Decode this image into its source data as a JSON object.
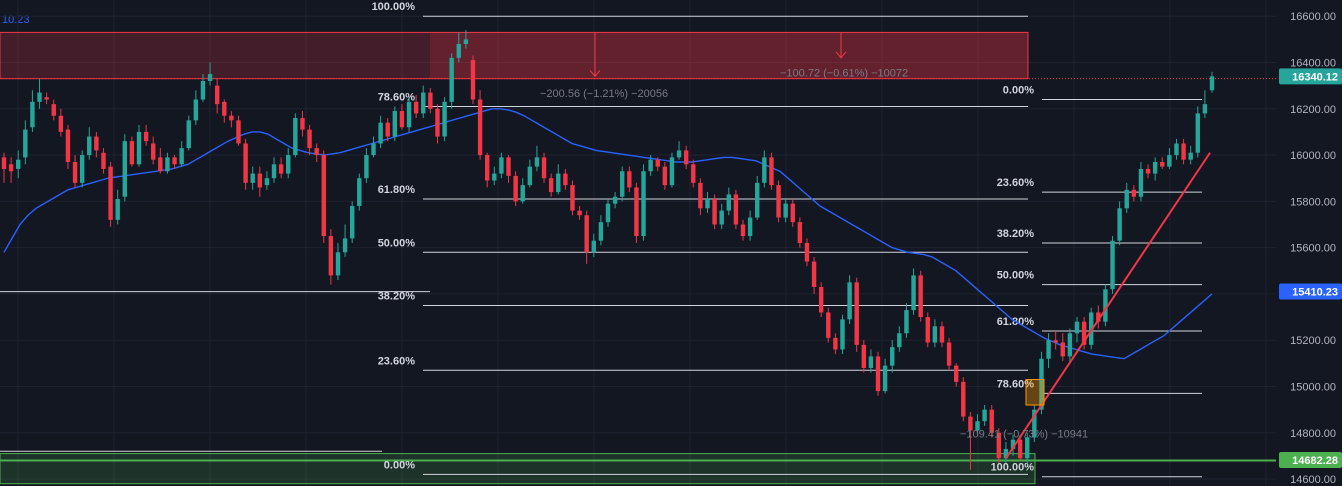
{
  "header": {
    "ma_value": "10.23"
  },
  "chart_data": {
    "type": "candlestick",
    "title": "",
    "y_axis": {
      "ticks": [
        16600,
        16400,
        16200,
        16000,
        15800,
        15600,
        15400,
        15200,
        15000,
        14800,
        14600
      ],
      "tick_labels": [
        "16600.00",
        "16400.00",
        "16200.00",
        "16000.00",
        "15800.00",
        "15600.00",
        "15400.00",
        "15200.00",
        "15000.00",
        "14800.00",
        "14600.00"
      ],
      "range": [
        14570,
        16670
      ]
    },
    "price_tags": [
      {
        "name": "last",
        "value": 16340.12,
        "label": "16340.12",
        "color": "#26a69a"
      },
      {
        "name": "ma",
        "value": 15410.23,
        "label": "15410.23",
        "color": "#2962ff"
      },
      {
        "name": "support",
        "value": 14682.28,
        "label": "14682.28",
        "color": "#4caf50"
      }
    ],
    "candles": [
      [
        15990,
        15940,
        16010,
        15880
      ],
      [
        15960,
        15930,
        15990,
        15880
      ],
      [
        15940,
        15980,
        16020,
        15900
      ],
      [
        15990,
        16110,
        16150,
        15960
      ],
      [
        16120,
        16230,
        16280,
        16100
      ],
      [
        16230,
        16270,
        16330,
        16200
      ],
      [
        16250,
        16240,
        16270,
        16220
      ],
      [
        16220,
        16170,
        16240,
        16150
      ],
      [
        16170,
        16100,
        16200,
        16080
      ],
      [
        16110,
        15970,
        16130,
        15940
      ],
      [
        15970,
        15880,
        16000,
        15860
      ],
      [
        15880,
        16000,
        16020,
        15860
      ],
      [
        16000,
        16080,
        16120,
        15980
      ],
      [
        16080,
        16020,
        16100,
        15990
      ],
      [
        16010,
        15940,
        16030,
        15920
      ],
      [
        15950,
        15720,
        15970,
        15690
      ],
      [
        15720,
        15810,
        15850,
        15700
      ],
      [
        15820,
        16060,
        16090,
        15800
      ],
      [
        16060,
        15960,
        16080,
        15950
      ],
      [
        15960,
        16100,
        16130,
        15950
      ],
      [
        16100,
        16060,
        16130,
        16040
      ],
      [
        16050,
        15980,
        16080,
        15960
      ],
      [
        15990,
        15930,
        16030,
        15920
      ],
      [
        15930,
        15990,
        16010,
        15920
      ],
      [
        15990,
        15960,
        16000,
        15940
      ],
      [
        15960,
        16030,
        16060,
        15950
      ],
      [
        16030,
        16150,
        16170,
        16020
      ],
      [
        16150,
        16240,
        16280,
        16130
      ],
      [
        16240,
        16320,
        16350,
        16230
      ],
      [
        16320,
        16350,
        16400,
        16300
      ],
      [
        16300,
        16220,
        16330,
        16180
      ],
      [
        16230,
        16170,
        16240,
        16140
      ],
      [
        16170,
        16150,
        16190,
        16120
      ],
      [
        16150,
        16050,
        16170,
        16040
      ],
      [
        16050,
        15880,
        16070,
        15850
      ],
      [
        15880,
        15920,
        15950,
        15850
      ],
      [
        15920,
        15860,
        15950,
        15820
      ],
      [
        15870,
        15900,
        15930,
        15850
      ],
      [
        15900,
        15960,
        15990,
        15880
      ],
      [
        15960,
        15920,
        15990,
        15900
      ],
      [
        15920,
        16000,
        16030,
        15900
      ],
      [
        16000,
        16160,
        16180,
        15990
      ],
      [
        16160,
        16110,
        16190,
        16080
      ],
      [
        16110,
        16030,
        16130,
        16000
      ],
      [
        16030,
        16000,
        16050,
        15970
      ],
      [
        16000,
        15650,
        16020,
        15620
      ],
      [
        15650,
        15480,
        15680,
        15440
      ],
      [
        15480,
        15580,
        15620,
        15460
      ],
      [
        15580,
        15640,
        15700,
        15560
      ],
      [
        15640,
        15780,
        15800,
        15620
      ],
      [
        15780,
        15900,
        15920,
        15760
      ],
      [
        15900,
        16000,
        16030,
        15880
      ],
      [
        16000,
        16050,
        16080,
        15990
      ],
      [
        16050,
        16140,
        16170,
        16030
      ],
      [
        16140,
        16080,
        16160,
        16060
      ],
      [
        16080,
        16190,
        16210,
        16060
      ],
      [
        16190,
        16120,
        16220,
        16110
      ],
      [
        16120,
        16230,
        16250,
        16100
      ],
      [
        16230,
        16180,
        16260,
        16160
      ],
      [
        16180,
        16270,
        16300,
        16160
      ],
      [
        16270,
        16200,
        16290,
        16180
      ],
      [
        16200,
        16080,
        16220,
        16050
      ],
      [
        16080,
        16230,
        16250,
        16060
      ],
      [
        16230,
        16420,
        16440,
        16200
      ],
      [
        16420,
        16480,
        16530,
        16400
      ],
      [
        16480,
        16500,
        16540,
        16460
      ],
      [
        16410,
        16240,
        16430,
        16220
      ],
      [
        16240,
        16000,
        16280,
        15980
      ],
      [
        16000,
        15890,
        16010,
        15860
      ],
      [
        15890,
        15920,
        15950,
        15870
      ],
      [
        15920,
        15990,
        16010,
        15900
      ],
      [
        15990,
        15910,
        16000,
        15880
      ],
      [
        15910,
        15800,
        15930,
        15780
      ],
      [
        15800,
        15870,
        15900,
        15790
      ],
      [
        15870,
        15950,
        15980,
        15860
      ],
      [
        15950,
        15990,
        16040,
        15930
      ],
      [
        15990,
        15900,
        16010,
        15880
      ],
      [
        15900,
        15840,
        15920,
        15820
      ],
      [
        15840,
        15920,
        15960,
        15830
      ],
      [
        15920,
        15870,
        15940,
        15850
      ],
      [
        15870,
        15760,
        15890,
        15740
      ],
      [
        15760,
        15740,
        15780,
        15720
      ],
      [
        15740,
        15580,
        15760,
        15530
      ],
      [
        15580,
        15630,
        15660,
        15560
      ],
      [
        15630,
        15710,
        15740,
        15610
      ],
      [
        15710,
        15790,
        15810,
        15690
      ],
      [
        15790,
        15820,
        15840,
        15770
      ],
      [
        15820,
        15930,
        15950,
        15800
      ],
      [
        15930,
        15860,
        15950,
        15840
      ],
      [
        15860,
        15650,
        15880,
        15620
      ],
      [
        15650,
        15930,
        15960,
        15630
      ],
      [
        15930,
        15980,
        16000,
        15910
      ],
      [
        15980,
        15950,
        15990,
        15930
      ],
      [
        15950,
        15870,
        15970,
        15850
      ],
      [
        15870,
        15990,
        16010,
        15860
      ],
      [
        15990,
        16020,
        16060,
        15980
      ],
      [
        16020,
        15960,
        16040,
        15940
      ],
      [
        15960,
        15880,
        15980,
        15860
      ],
      [
        15880,
        15770,
        15900,
        15740
      ],
      [
        15770,
        15810,
        15840,
        15750
      ],
      [
        15810,
        15700,
        15830,
        15680
      ],
      [
        15700,
        15760,
        15790,
        15680
      ],
      [
        15760,
        15830,
        15860,
        15740
      ],
      [
        15830,
        15700,
        15850,
        15680
      ],
      [
        15700,
        15650,
        15720,
        15630
      ],
      [
        15650,
        15730,
        15760,
        15630
      ],
      [
        15730,
        15880,
        15910,
        15720
      ],
      [
        15880,
        15990,
        16020,
        15860
      ],
      [
        15990,
        15870,
        16010,
        15850
      ],
      [
        15870,
        15730,
        15890,
        15710
      ],
      [
        15730,
        15790,
        15810,
        15710
      ],
      [
        15790,
        15710,
        15810,
        15690
      ],
      [
        15710,
        15620,
        15730,
        15600
      ],
      [
        15620,
        15540,
        15640,
        15520
      ],
      [
        15540,
        15430,
        15560,
        15400
      ],
      [
        15430,
        15320,
        15450,
        15300
      ],
      [
        15320,
        15210,
        15340,
        15190
      ],
      [
        15210,
        15160,
        15230,
        15140
      ],
      [
        15160,
        15290,
        15310,
        15140
      ],
      [
        15290,
        15450,
        15480,
        15270
      ],
      [
        15450,
        15180,
        15470,
        15150
      ],
      [
        15180,
        15080,
        15200,
        15060
      ],
      [
        15080,
        15130,
        15160,
        15060
      ],
      [
        15130,
        14980,
        15150,
        14960
      ],
      [
        14980,
        15090,
        15120,
        14970
      ],
      [
        15090,
        15170,
        15200,
        15060
      ],
      [
        15170,
        15230,
        15260,
        15150
      ],
      [
        15230,
        15330,
        15360,
        15210
      ],
      [
        15330,
        15480,
        15510,
        15310
      ],
      [
        15480,
        15300,
        15500,
        15280
      ],
      [
        15300,
        15190,
        15320,
        15170
      ],
      [
        15190,
        15260,
        15290,
        15170
      ],
      [
        15260,
        15190,
        15280,
        15170
      ],
      [
        15190,
        15090,
        15210,
        15070
      ],
      [
        15090,
        15020,
        15100,
        15000
      ],
      [
        15020,
        14870,
        15040,
        14850
      ],
      [
        14870,
        14810,
        14890,
        14640
      ],
      [
        14810,
        14850,
        14880,
        14790
      ],
      [
        14850,
        14900,
        14920,
        14830
      ],
      [
        14900,
        14800,
        14920,
        14780
      ],
      [
        14800,
        14690,
        14820,
        14670
      ],
      [
        14690,
        14730,
        14760,
        14670
      ],
      [
        14730,
        14770,
        14790,
        14700
      ],
      [
        14770,
        14690,
        14790,
        14680
      ],
      [
        14690,
        14780,
        14800,
        14670
      ],
      [
        14780,
        14900,
        14920,
        14760
      ],
      [
        14900,
        15120,
        15150,
        14880
      ],
      [
        15120,
        15200,
        15230,
        15080
      ],
      [
        15200,
        15190,
        15240,
        15160
      ],
      [
        15190,
        15130,
        15230,
        15110
      ],
      [
        15130,
        15230,
        15250,
        15100
      ],
      [
        15230,
        15280,
        15300,
        15190
      ],
      [
        15280,
        15180,
        15300,
        15160
      ],
      [
        15180,
        15320,
        15340,
        15160
      ],
      [
        15320,
        15280,
        15350,
        15250
      ],
      [
        15280,
        15420,
        15440,
        15260
      ],
      [
        15420,
        15630,
        15650,
        15400
      ],
      [
        15630,
        15770,
        15800,
        15610
      ],
      [
        15770,
        15850,
        15880,
        15750
      ],
      [
        15850,
        15820,
        15870,
        15800
      ],
      [
        15820,
        15940,
        15970,
        15800
      ],
      [
        15940,
        15920,
        15960,
        15900
      ],
      [
        15920,
        15970,
        15990,
        15890
      ],
      [
        15970,
        15950,
        15990,
        15940
      ],
      [
        15950,
        16000,
        16030,
        15940
      ],
      [
        16000,
        16050,
        16070,
        15980
      ],
      [
        16050,
        15980,
        16070,
        15960
      ],
      [
        15980,
        16010,
        16040,
        15960
      ],
      [
        16010,
        16180,
        16210,
        15990
      ],
      [
        16180,
        16220,
        16280,
        16160
      ],
      [
        16280,
        16340,
        16360,
        16270
      ]
    ],
    "ma": [
      15580,
      15640,
      15700,
      15740,
      15770,
      15790,
      15810,
      15830,
      15850,
      15860,
      15870,
      15880,
      15890,
      15900,
      15905,
      15910,
      15915,
      15920,
      15925,
      15930,
      15935,
      15940,
      15950,
      15960,
      15980,
      16000,
      16020,
      16040,
      16060,
      16075,
      16090,
      16100,
      16100,
      16090,
      16070,
      16050,
      16030,
      16020,
      16010,
      16005,
      16000,
      16005,
      16010,
      16020,
      16030,
      16040,
      16050,
      16060,
      16070,
      16080,
      16090,
      16100,
      16110,
      16120,
      16130,
      16140,
      16150,
      16160,
      16170,
      16180,
      16190,
      16200,
      16200,
      16195,
      16185,
      16170,
      16150,
      16130,
      16110,
      16090,
      16070,
      16050,
      16040,
      16030,
      16020,
      16015,
      16010,
      16005,
      16000,
      15995,
      15990,
      15985,
      15980,
      15975,
      15970,
      15970,
      15970,
      15975,
      15980,
      15985,
      15990,
      15990,
      15985,
      15980,
      15975,
      15960,
      15945,
      15930,
      15900,
      15870,
      15840,
      15810,
      15780,
      15760,
      15740,
      15720,
      15700,
      15680,
      15660,
      15640,
      15620,
      15600,
      15590,
      15580,
      15575,
      15570,
      15560,
      15540,
      15520,
      15500,
      15470,
      15440,
      15410,
      15380,
      15350,
      15320,
      15290,
      15270,
      15250,
      15230,
      15210,
      15195,
      15180,
      15170,
      15160,
      15150,
      15140,
      15135,
      15130,
      15125,
      15120,
      15140,
      15160,
      15180,
      15200,
      15220,
      15250,
      15280,
      15310,
      15340,
      15370,
      15400
    ],
    "fib_left": {
      "levels": [
        {
          "label": "100.00%",
          "price": 16600
        },
        {
          "label": "78.60%",
          "price": 16210
        },
        {
          "label": "61.80%",
          "price": 15810
        },
        {
          "label": "50.00%",
          "price": 15580
        },
        {
          "label": "38.20%",
          "price": 15350
        },
        {
          "label": "23.60%",
          "price": 15070
        },
        {
          "label": "0.00%",
          "price": 14620
        }
      ]
    },
    "fib_right": {
      "levels": [
        {
          "label": "0.00%",
          "price": 16240
        },
        {
          "label": "23.60%",
          "price": 15840
        },
        {
          "label": "38.20%",
          "price": 15620
        },
        {
          "label": "50.00%",
          "price": 15440
        },
        {
          "label": "61.80%",
          "price": 15240
        },
        {
          "label": "78.60%",
          "price": 14970
        },
        {
          "label": "100.00%",
          "price": 14610
        }
      ]
    },
    "zones": {
      "resistance_top": 16530,
      "resistance_bottom": 16330,
      "support_top": 14710,
      "support_bottom": 14580
    },
    "horizontal_lines": [
      15410,
      14720,
      14680
    ],
    "measurements": [
      {
        "text": "−200.56 (−1.21%) −20056",
        "price": 16250
      },
      {
        "text": "−100.72 (−0.61%) −10072",
        "price": 16340
      },
      {
        "text": "−109.41 (−0.73%) −10941",
        "price": 14780
      }
    ],
    "trendline": {
      "from_price": 14690,
      "to_price": 16010
    }
  }
}
